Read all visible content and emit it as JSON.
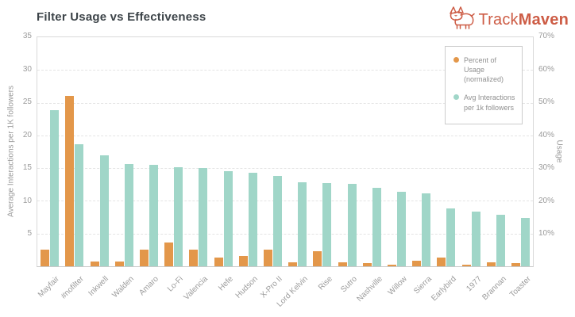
{
  "header": {
    "title": "Filter Usage vs Effectiveness",
    "logo": {
      "text_regular": "Track",
      "text_bold": "Maven"
    }
  },
  "chart_data": {
    "type": "bar",
    "title": "Filter Usage vs Effectiveness",
    "categories": [
      "Mayfair",
      "#nofilter",
      "Inkwell",
      "Walden",
      "Amaro",
      "Lo-Fi",
      "Valencia",
      "Hefe",
      "Hudson",
      "X-Pro II",
      "Lord Kelvin",
      "Rise",
      "Sutro",
      "Nashville",
      "Willow",
      "Sierra",
      "Earlybird",
      "1977",
      "Brannan",
      "Toaster"
    ],
    "series": [
      {
        "name": "Percent of Usage (normalized)",
        "axis": "right",
        "unit": "%",
        "color": "#e3974a",
        "values": [
          5.0,
          52.0,
          1.4,
          1.5,
          5.0,
          7.2,
          5.2,
          2.6,
          3.2,
          5.0,
          1.3,
          4.6,
          1.2,
          1.0,
          0.4,
          1.6,
          2.6,
          0.4,
          1.2,
          1.0
        ]
      },
      {
        "name": "Avg Interactions per 1k followers",
        "axis": "left",
        "unit": "interactions per 1K followers",
        "color": "#a0d6c8",
        "values": [
          23.9,
          18.6,
          17.0,
          15.6,
          15.5,
          15.2,
          15.0,
          14.5,
          14.3,
          13.8,
          12.8,
          12.7,
          12.6,
          12.0,
          11.4,
          11.2,
          8.9,
          8.4,
          7.9,
          7.4
        ]
      }
    ],
    "left_axis": {
      "title": "Average Interactions per 1K followers",
      "min": 0,
      "max": 35,
      "ticks": [
        35,
        30,
        25,
        20,
        15,
        10,
        5
      ]
    },
    "right_axis": {
      "title": "Usage",
      "min": 0,
      "max": 70,
      "tick_labels": [
        "70%",
        "60%",
        "50%",
        "40%",
        "30%",
        "20%",
        "10%"
      ],
      "tick_values": [
        70,
        60,
        50,
        40,
        30,
        20,
        10
      ]
    },
    "gridline_values": [
      30,
      25,
      20,
      15,
      10,
      5
    ],
    "grid": true,
    "legend_position": "top-right"
  },
  "theme": {
    "logo_color": "#cd5c45",
    "title_color": "#3d4449",
    "axis_text_color": "#9b9b9b",
    "gridline_color": "#e4e4e4",
    "plot_border_color": "#d9d9d9",
    "background": "#ffffff"
  }
}
